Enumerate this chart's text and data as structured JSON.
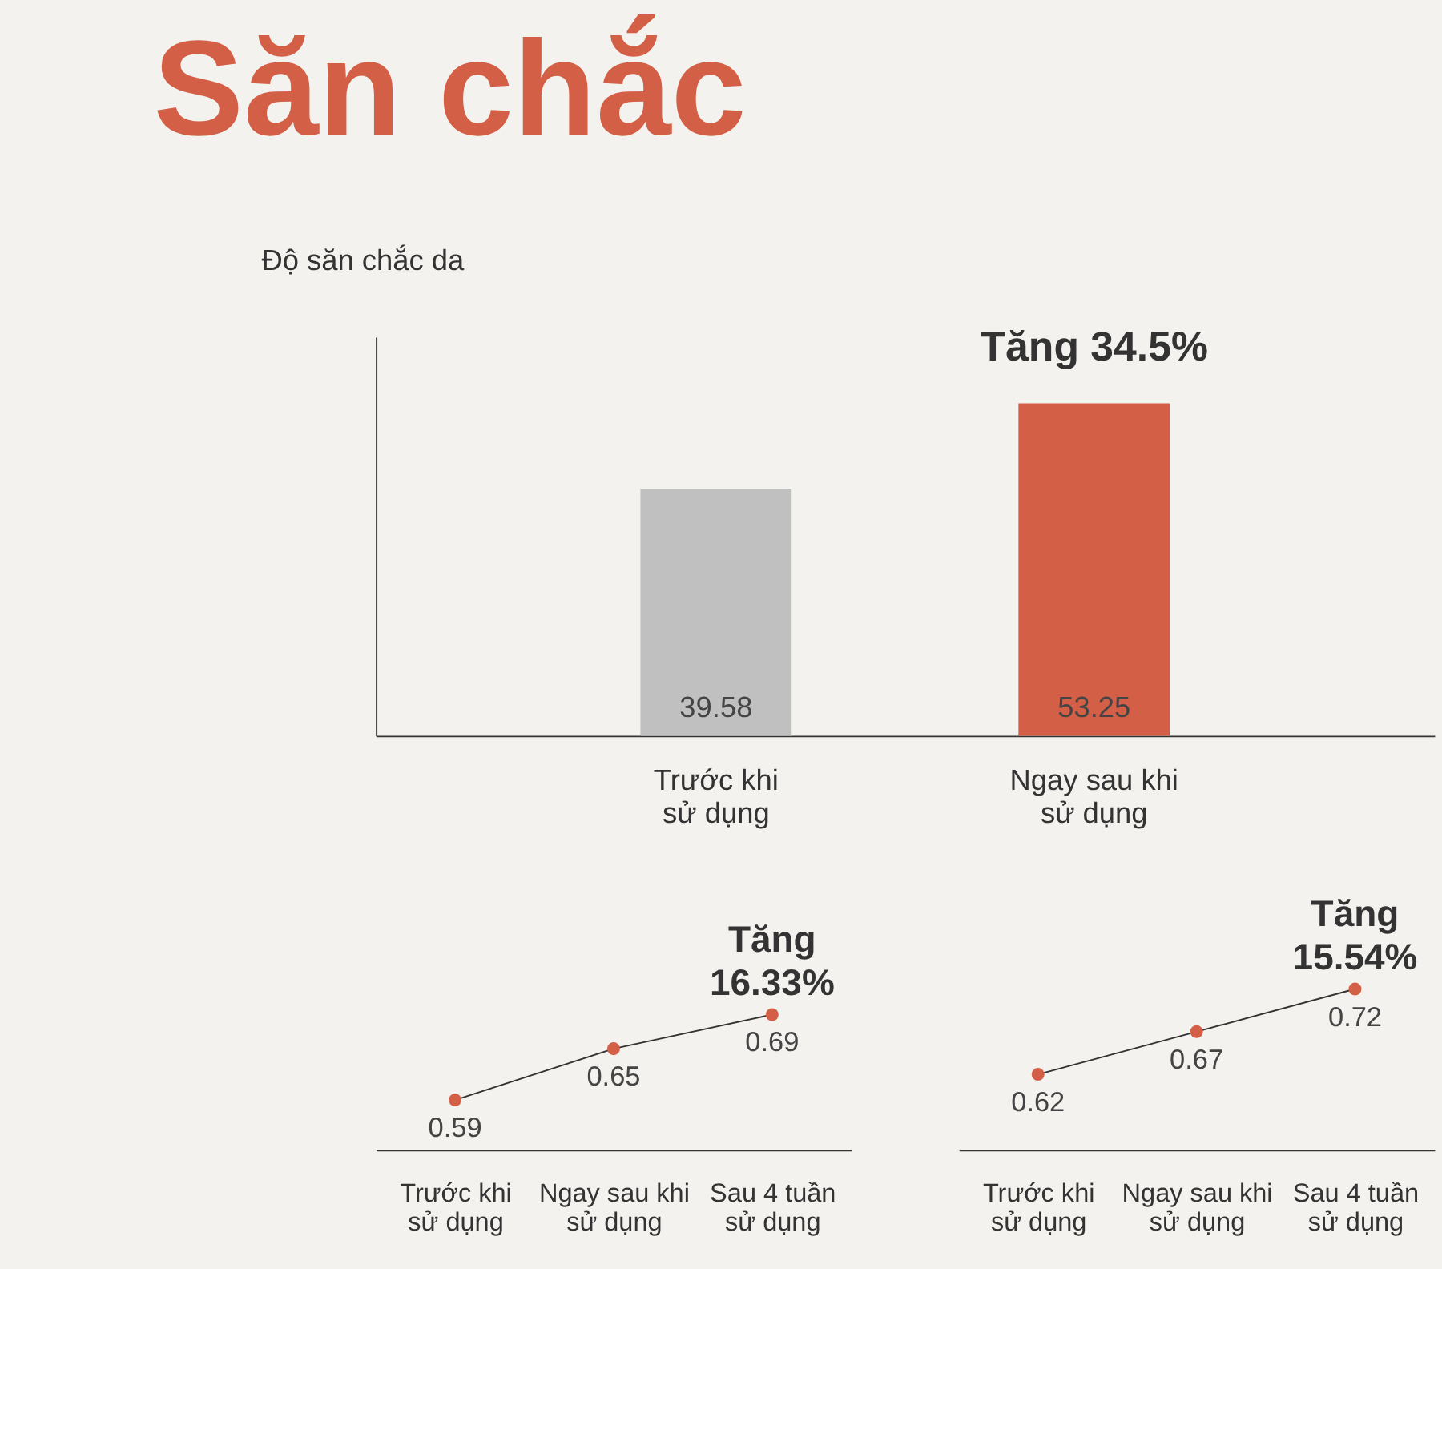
{
  "chart_data": [
    {
      "type": "bar",
      "title": "Săn chắc",
      "ylabel": "Độ săn chắc da",
      "categories": [
        "Trước khi\nsử dụng",
        "Ngay sau khi\nsử dụng"
      ],
      "values": [
        39.58,
        53.25
      ],
      "colors": [
        "#c0c0c0",
        "#d35f47"
      ],
      "data_labels": true,
      "annotations": [
        "Tăng 34.5%"
      ]
    },
    {
      "type": "line",
      "categories": [
        "Trước khi\nsử dụng",
        "Ngay sau khi\nsử dụng",
        "Sau 4 tuần\nsử dụng"
      ],
      "series": [
        {
          "color": "#d35f47",
          "values": [
            0.59,
            0.65,
            0.69
          ]
        }
      ],
      "data_labels": true,
      "annotations": [
        "Tăng\n16.33%"
      ],
      "marker": "circle"
    },
    {
      "type": "line",
      "categories": [
        "Trước khi\nsử dụng",
        "Ngay sau khi\nsử dụng",
        "Sau 4 tuần\nsử dụng"
      ],
      "series": [
        {
          "color": "#d35f47",
          "values": [
            0.62,
            0.67,
            0.72
          ]
        }
      ],
      "data_labels": true,
      "annotations": [
        "Tăng\n15.54%"
      ],
      "marker": "circle"
    }
  ]
}
